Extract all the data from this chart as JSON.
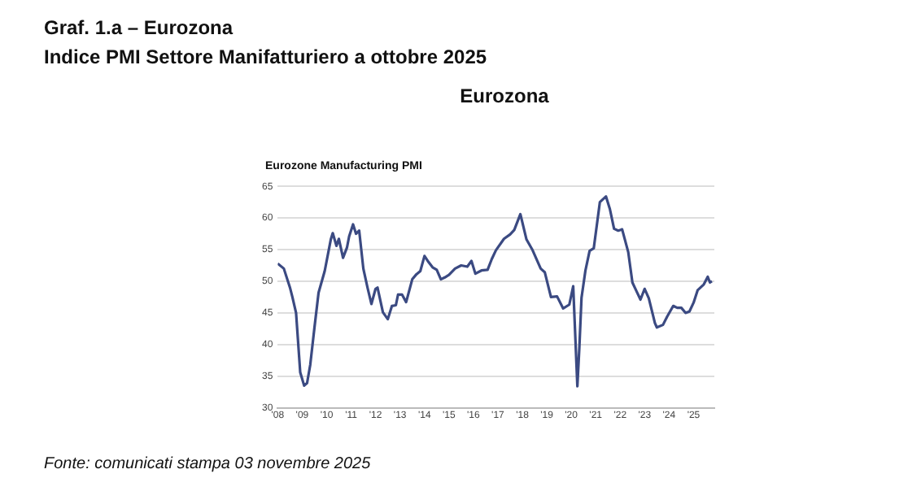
{
  "chart_data": {
    "type": "line",
    "title": "Graf. 1.a – Eurozona",
    "subtitle": "Indice PMI Settore Manifatturiero a ottobre 2025",
    "annotations": [
      "Eurozona",
      "Eurozone Manufacturing PMI",
      "Fonte: comunicati stampa 03 novembre 2025"
    ],
    "xlim": [
      2008,
      2025.85
    ],
    "xticks": [
      {
        "value": 2008,
        "label": "'08"
      },
      {
        "value": 2009,
        "label": "'09"
      },
      {
        "value": 2010,
        "label": "'10"
      },
      {
        "value": 2011,
        "label": "'11"
      },
      {
        "value": 2012,
        "label": "'12"
      },
      {
        "value": 2013,
        "label": "'13"
      },
      {
        "value": 2014,
        "label": "'14"
      },
      {
        "value": 2015,
        "label": "'15"
      },
      {
        "value": 2016,
        "label": "'16"
      },
      {
        "value": 2017,
        "label": "'17"
      },
      {
        "value": 2018,
        "label": "'18"
      },
      {
        "value": 2019,
        "label": "'19"
      },
      {
        "value": 2020,
        "label": "'20"
      },
      {
        "value": 2021,
        "label": "'21"
      },
      {
        "value": 2022,
        "label": "'22"
      },
      {
        "value": 2023,
        "label": "'23"
      },
      {
        "value": 2024,
        "label": "'24"
      },
      {
        "value": 2025,
        "label": "'25"
      }
    ],
    "ylim": [
      30,
      65
    ],
    "yticks": [
      30,
      35,
      40,
      45,
      50,
      55,
      60,
      65
    ],
    "grid": "y",
    "legend": false,
    "marker": "none",
    "line_style": "solid",
    "x": [
      2008.0,
      2008.25,
      2008.5,
      2008.6,
      2008.75,
      2008.92,
      2009.08,
      2009.2,
      2009.33,
      2009.5,
      2009.67,
      2009.92,
      2010.17,
      2010.25,
      2010.4,
      2010.5,
      2010.67,
      2010.83,
      2010.92,
      2011.08,
      2011.2,
      2011.33,
      2011.5,
      2011.67,
      2011.83,
      2012.0,
      2012.08,
      2012.3,
      2012.5,
      2012.67,
      2012.83,
      2012.92,
      2013.08,
      2013.25,
      2013.5,
      2013.67,
      2013.83,
      2014.0,
      2014.17,
      2014.33,
      2014.5,
      2014.67,
      2014.83,
      2015.0,
      2015.25,
      2015.5,
      2015.75,
      2015.92,
      2016.08,
      2016.33,
      2016.58,
      2016.75,
      2016.92,
      2017.25,
      2017.5,
      2017.67,
      2017.92,
      2018.17,
      2018.42,
      2018.75,
      2018.92,
      2019.17,
      2019.42,
      2019.67,
      2019.92,
      2020.08,
      2020.25,
      2020.33,
      2020.42,
      2020.58,
      2020.75,
      2020.92,
      2021.17,
      2021.42,
      2021.58,
      2021.75,
      2021.92,
      2022.08,
      2022.33,
      2022.5,
      2022.67,
      2022.83,
      2023.0,
      2023.17,
      2023.42,
      2023.5,
      2023.75,
      2023.92,
      2024.17,
      2024.33,
      2024.5,
      2024.67,
      2024.83,
      2025.0,
      2025.17,
      2025.42,
      2025.58,
      2025.67,
      2025.75
    ],
    "series": [
      {
        "color": "#3b4a82",
        "values": [
          52.8,
          52.0,
          49.0,
          47.5,
          45.0,
          35.6,
          33.5,
          33.9,
          36.8,
          42.6,
          48.2,
          51.6,
          56.6,
          57.6,
          55.6,
          56.7,
          53.7,
          55.3,
          57.1,
          59.0,
          57.5,
          58.0,
          52.0,
          49.0,
          46.4,
          48.8,
          49.0,
          45.1,
          44.0,
          46.1,
          46.2,
          47.9,
          47.9,
          46.7,
          50.3,
          51.1,
          51.6,
          54.0,
          53.0,
          52.2,
          51.8,
          50.3,
          50.6,
          51.0,
          52.0,
          52.5,
          52.3,
          53.2,
          51.2,
          51.7,
          51.8,
          53.5,
          54.9,
          56.7,
          57.4,
          58.1,
          60.6,
          56.6,
          54.9,
          52.0,
          51.4,
          47.5,
          47.6,
          45.7,
          46.3,
          49.2,
          33.4,
          39.4,
          47.4,
          51.7,
          54.8,
          55.2,
          62.5,
          63.4,
          61.4,
          58.3,
          58.0,
          58.2,
          54.6,
          49.8,
          48.4,
          47.1,
          48.8,
          47.3,
          43.4,
          42.7,
          43.1,
          44.4,
          46.1,
          45.8,
          45.8,
          45.0,
          45.2,
          46.6,
          48.6,
          49.5,
          50.7,
          49.8,
          50.0
        ]
      }
    ]
  }
}
